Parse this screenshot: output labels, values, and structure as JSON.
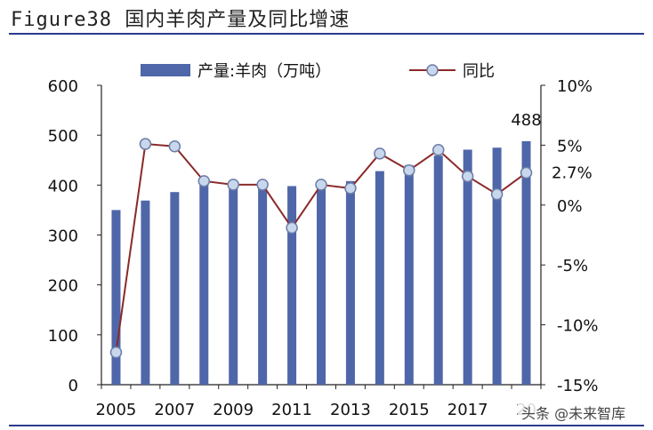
{
  "header": {
    "title": "Figure38 国内羊肉产量及同比增速"
  },
  "watermark": "头条 @未来智库",
  "colors": {
    "bar": "#4f67a9",
    "line": "#8b2a2a",
    "marker_fill": "#c9d7ec",
    "marker_stroke": "#6b7da8",
    "rule": "#2b3a8c"
  },
  "chart_data": {
    "type": "bar+line",
    "title": "国内羊肉产量及同比增速",
    "x": [
      2005,
      2006,
      2007,
      2008,
      2009,
      2010,
      2011,
      2012,
      2013,
      2014,
      2015,
      2016,
      2017,
      2018,
      2019
    ],
    "x_tick_labels": [
      "2005",
      "2007",
      "2009",
      "2011",
      "2013",
      "2015",
      "2017",
      "20"
    ],
    "series": [
      {
        "name": "产量:羊肉（万吨）",
        "axis": "left",
        "kind": "bar",
        "values": [
          350,
          369,
          386,
          406,
          398,
          402,
          398,
          401,
          408,
          428,
          440,
          459,
          471,
          475,
          488
        ]
      },
      {
        "name": "同比",
        "axis": "right",
        "kind": "line",
        "unit": "%",
        "values": [
          -12.3,
          5.1,
          4.9,
          2.0,
          1.7,
          1.7,
          -1.9,
          1.7,
          1.4,
          4.3,
          2.9,
          4.6,
          2.4,
          0.9,
          2.7
        ]
      }
    ],
    "left_axis": {
      "ylim": [
        0,
        600
      ],
      "ticks": [
        "0",
        "100",
        "200",
        "300",
        "400",
        "500",
        "600"
      ]
    },
    "right_axis": {
      "ylim": [
        -15,
        10
      ],
      "ticks": [
        "-15%",
        "-10%",
        "-5%",
        "0%",
        "5%",
        "10%"
      ]
    },
    "annotations": {
      "last_bar": "488",
      "last_point": "2.7%"
    },
    "legend": {
      "position": "top",
      "items": [
        "产量:羊肉（万吨）",
        "同比"
      ]
    }
  }
}
